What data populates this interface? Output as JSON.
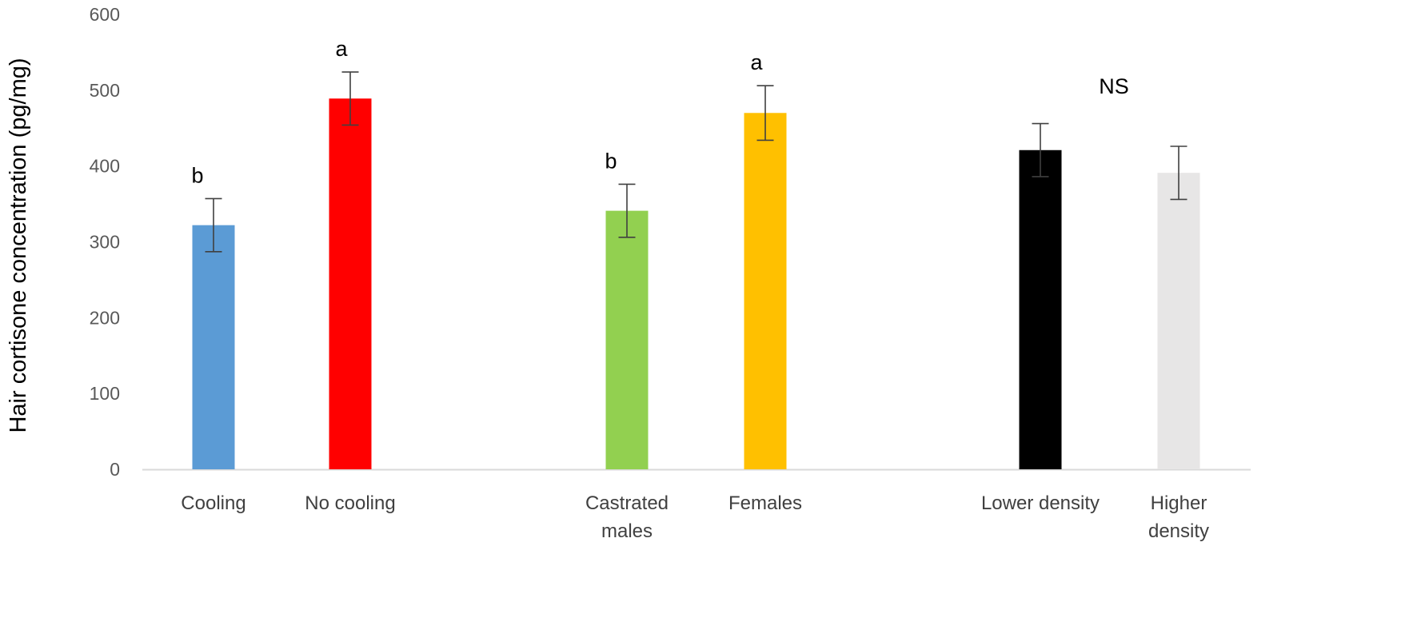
{
  "chart_data": {
    "type": "bar",
    "ylabel": "Hair cortisone concentration (pg/mg)",
    "ylim": [
      0,
      600
    ],
    "yticks": [
      0,
      100,
      200,
      300,
      400,
      500,
      600
    ],
    "grid": false,
    "groups": [
      {
        "bars": [
          {
            "label": [
              "Cooling"
            ],
            "value": 322,
            "error": 35,
            "color": "#5B9BD5"
          },
          {
            "label": [
              "No cooling"
            ],
            "value": 489,
            "error": 35,
            "color": "#FF0000"
          }
        ],
        "annotations": [
          "b",
          "a"
        ]
      },
      {
        "bars": [
          {
            "label": [
              "Castrated",
              "males"
            ],
            "value": 341,
            "error": 35,
            "color": "#92D050"
          },
          {
            "label": [
              "Females"
            ],
            "value": 470,
            "error": 36,
            "color": "#FFC000"
          }
        ],
        "annotations": [
          "b",
          "a"
        ]
      },
      {
        "bars": [
          {
            "label": [
              "Lower density"
            ],
            "value": 421,
            "error": 35,
            "color": "#000000"
          },
          {
            "label": [
              "Higher",
              "density"
            ],
            "value": 391,
            "error": 35,
            "color": "#E7E6E6"
          }
        ],
        "annotations": [
          "NS"
        ]
      }
    ]
  }
}
